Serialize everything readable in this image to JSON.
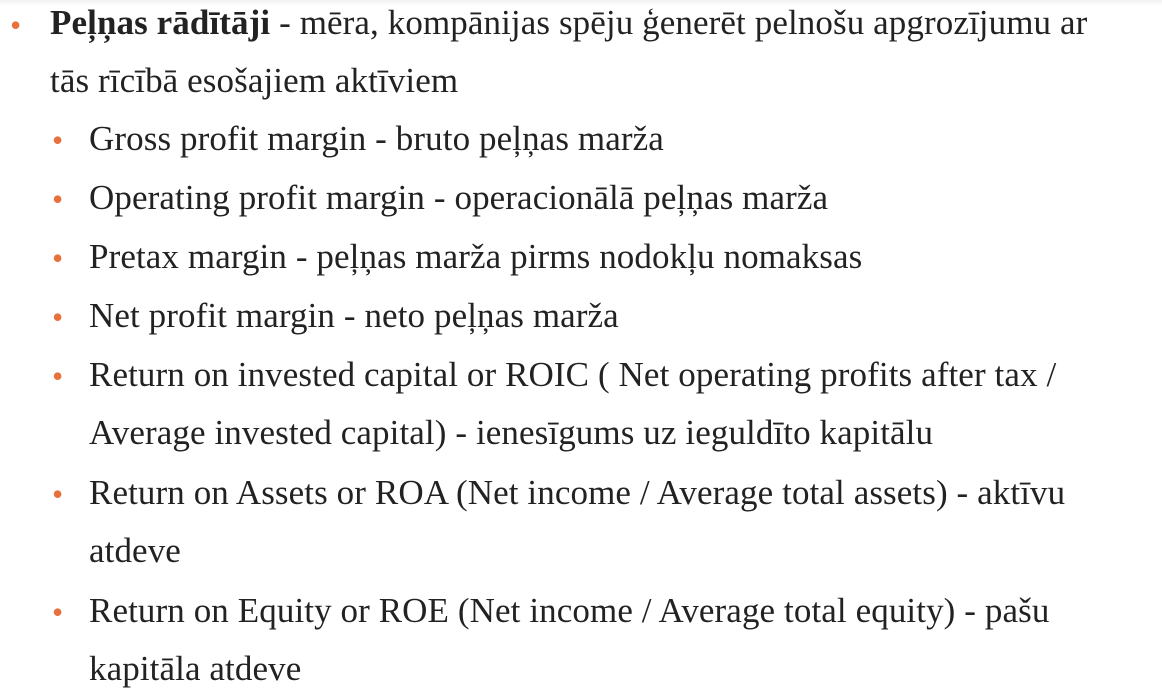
{
  "main": {
    "heading_term": "Peļņas rādītāji",
    "heading_rest": " - mēra, kompānijas spēju ģenerēt pelnošu apgrozījumu ar",
    "heading_cont": "tās rīcībā esošajiem aktīviem",
    "items": [
      {
        "lines": [
          "Gross profit margin - bruto peļņas marža"
        ]
      },
      {
        "lines": [
          "Operating profit margin - operacionālā peļņas marža"
        ]
      },
      {
        "lines": [
          "Pretax margin - peļņas marža pirms nodokļu nomaksas"
        ]
      },
      {
        "lines": [
          "Net profit margin - neto peļņas marža"
        ]
      },
      {
        "lines": [
          "Return on invested capital or ROIC ( Net operating profits after tax /",
          "Average invested capital) - ienesīgums uz ieguldīto kapitālu"
        ]
      },
      {
        "lines": [
          "Return on Assets or ROA (Net income / Average total assets) - aktīvu",
          "atdeve"
        ]
      },
      {
        "lines": [
          "Return on Equity or ROE (Net income / Average total equity) - pašu",
          "kapitāla atdeve"
        ]
      }
    ],
    "bullet_color": "#e8703a"
  }
}
